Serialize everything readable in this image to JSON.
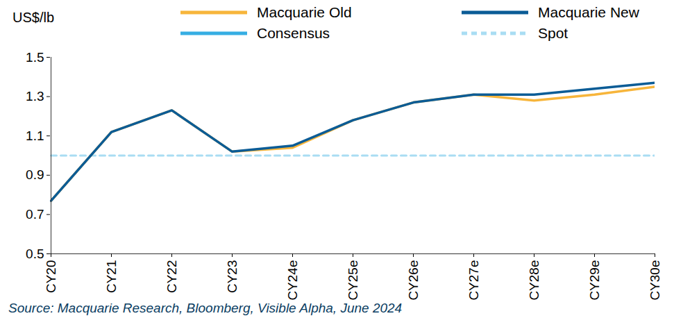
{
  "chart_data": {
    "type": "line",
    "y_label": "US$/lb",
    "caption": "Source: Macquarie Research, Bloomberg, Visible Alpha, June 2024",
    "categories": [
      "CY20",
      "CY21",
      "CY22",
      "CY23",
      "CY24e",
      "CY25e",
      "CY26e",
      "CY27e",
      "CY28e",
      "CY29e",
      "CY30e"
    ],
    "series": [
      {
        "name": "Macquarie Old",
        "color": "#f7b53b",
        "line_style": "solid",
        "values": [
          0.77,
          1.12,
          1.23,
          1.02,
          1.04,
          1.18,
          1.27,
          1.31,
          1.28,
          1.31,
          1.35
        ]
      },
      {
        "name": "Macquarie New",
        "color": "#0b5c96",
        "line_style": "solid",
        "values": [
          0.77,
          1.12,
          1.23,
          1.02,
          1.05,
          1.18,
          1.27,
          1.31,
          1.31,
          1.34,
          1.37
        ]
      },
      {
        "name": "Consensus",
        "color": "#36aee3",
        "line_style": "solid",
        "values": [
          null,
          null,
          null,
          null,
          null,
          null,
          null,
          null,
          null,
          null,
          null
        ]
      },
      {
        "name": "Spot",
        "color": "#a9ddf3",
        "line_style": "dashed",
        "values": [
          1.0,
          1.0,
          1.0,
          1.0,
          1.0,
          1.0,
          1.0,
          1.0,
          1.0,
          1.0,
          1.0
        ]
      }
    ],
    "ylim": [
      0.5,
      1.5
    ],
    "yticks": [
      0.5,
      0.7,
      0.9,
      1.1,
      1.3,
      1.5
    ],
    "grid": false,
    "legend": "top"
  }
}
